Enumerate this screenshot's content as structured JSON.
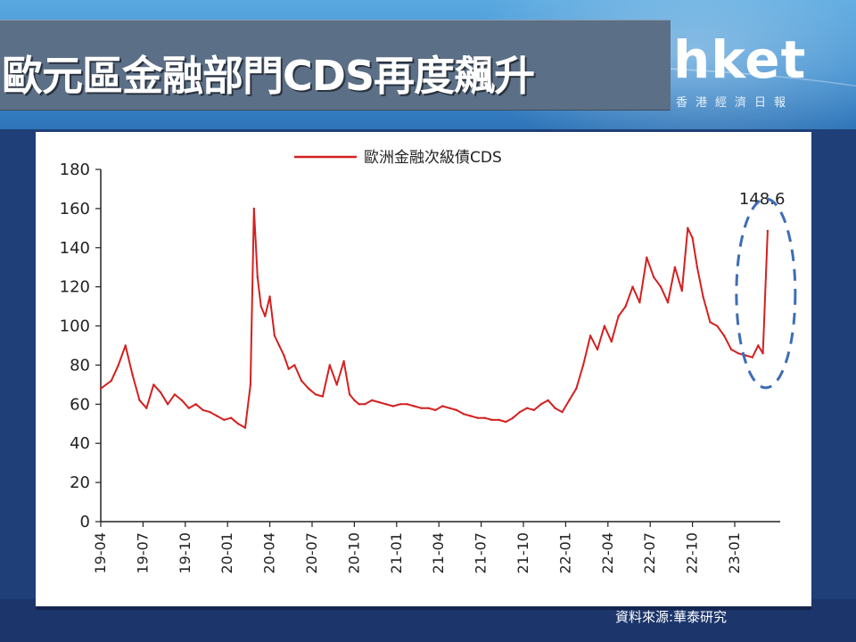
{
  "slide": {
    "title": "歐元區金融部門CDS再度飆升",
    "logo": "hket",
    "logo_sub": "香港經濟日報",
    "source": "資料來源:華泰研究"
  },
  "chart_data": {
    "type": "line",
    "title": "",
    "legend": "top-center",
    "grid": false,
    "ylim": [
      0,
      180
    ],
    "yticks": [
      0,
      20,
      40,
      60,
      80,
      100,
      120,
      140,
      160,
      180
    ],
    "xticks": [
      "19-04",
      "19-07",
      "19-10",
      "20-01",
      "20-04",
      "20-07",
      "20-10",
      "21-01",
      "21-04",
      "21-07",
      "21-10",
      "22-01",
      "22-04",
      "22-07",
      "22-10",
      "23-01"
    ],
    "annotation": "148.6",
    "series": [
      {
        "name": "歐洲金融次級債CDS",
        "color": "#d42020",
        "x": [
          "19-04",
          "19-05",
          "19-05",
          "19-06",
          "19-06",
          "19-07",
          "19-07",
          "19-08",
          "19-08",
          "19-09",
          "19-09",
          "19-10",
          "19-10",
          "19-11",
          "19-11",
          "19-12",
          "19-12",
          "20-01",
          "20-01",
          "20-02",
          "20-02",
          "20-03",
          "20-03",
          "20-03",
          "20-03",
          "20-04",
          "20-04",
          "20-04",
          "20-05",
          "20-05",
          "20-05",
          "20-06",
          "20-06",
          "20-07",
          "20-07",
          "20-08",
          "20-08",
          "20-09",
          "20-09",
          "20-10",
          "20-10",
          "20-10",
          "20-11",
          "20-11",
          "20-12",
          "20-12",
          "21-01",
          "21-01",
          "21-02",
          "21-02",
          "21-03",
          "21-03",
          "21-04",
          "21-04",
          "21-05",
          "21-05",
          "21-06",
          "21-06",
          "21-07",
          "21-07",
          "21-08",
          "21-08",
          "21-09",
          "21-09",
          "21-10",
          "21-10",
          "21-11",
          "21-11",
          "21-12",
          "21-12",
          "22-01",
          "22-01",
          "22-02",
          "22-02",
          "22-03",
          "22-03",
          "22-04",
          "22-04",
          "22-05",
          "22-05",
          "22-06",
          "22-06",
          "22-07",
          "22-07",
          "22-08",
          "22-08",
          "22-09",
          "22-09",
          "22-10",
          "22-10",
          "22-10",
          "22-11",
          "22-11",
          "22-12",
          "22-12",
          "23-01",
          "23-01",
          "23-02",
          "23-02",
          "23-03",
          "23-03",
          "23-03"
        ],
        "values": [
          68,
          72,
          80,
          90,
          75,
          62,
          58,
          70,
          66,
          60,
          65,
          62,
          58,
          60,
          57,
          56,
          54,
          52,
          53,
          50,
          48,
          70,
          160,
          125,
          110,
          105,
          115,
          95,
          90,
          85,
          78,
          80,
          72,
          68,
          65,
          64,
          80,
          70,
          82,
          65,
          62,
          60,
          60,
          62,
          61,
          60,
          59,
          60,
          60,
          59,
          58,
          58,
          57,
          59,
          58,
          57,
          55,
          54,
          53,
          53,
          52,
          52,
          51,
          53,
          56,
          58,
          57,
          60,
          62,
          58,
          56,
          62,
          68,
          80,
          95,
          88,
          100,
          92,
          105,
          110,
          120,
          112,
          135,
          125,
          120,
          112,
          130,
          118,
          150,
          145,
          130,
          115,
          102,
          100,
          95,
          88,
          86,
          85,
          84,
          90,
          86,
          148.6
        ]
      }
    ]
  }
}
